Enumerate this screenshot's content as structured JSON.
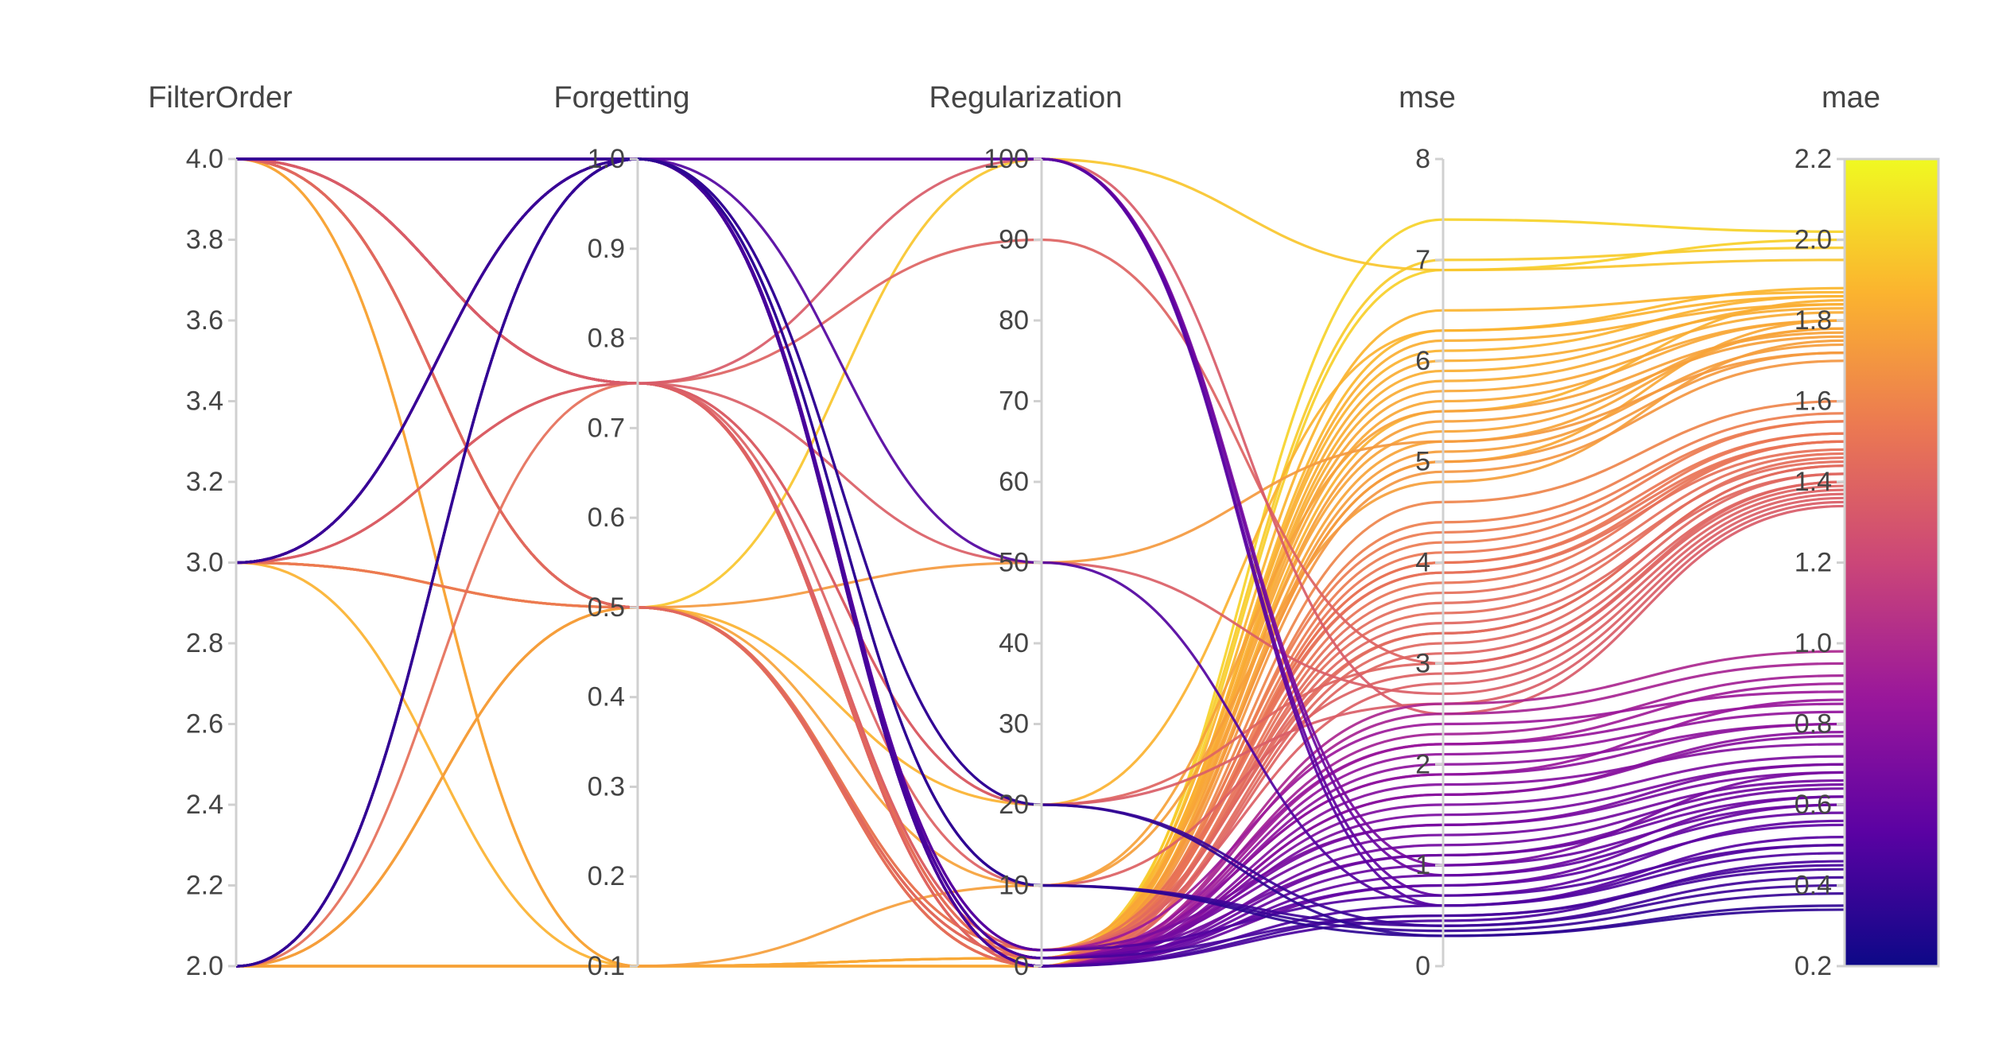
{
  "chart_data": {
    "type": "parallel_coordinates",
    "title": "",
    "colorscale": [
      "#0d0887",
      "#5b02a3",
      "#9a179b",
      "#cb4678",
      "#eb7852",
      "#fbb32f",
      "#f0f921"
    ],
    "color_dimension": "mae",
    "dimensions": [
      {
        "name": "FilterOrder",
        "range": [
          2.0,
          4.0
        ],
        "ticks": [
          "2.0",
          "2.2",
          "2.4",
          "2.6",
          "2.8",
          "3.0",
          "3.2",
          "3.4",
          "3.6",
          "3.8",
          "4.0"
        ]
      },
      {
        "name": "Forgetting",
        "range": [
          0.1,
          1.0
        ],
        "ticks": [
          "0.1",
          "0.2",
          "0.3",
          "0.4",
          "0.5",
          "0.6",
          "0.7",
          "0.8",
          "0.9",
          "1.0"
        ]
      },
      {
        "name": "Regularization",
        "range": [
          0,
          100
        ],
        "ticks": [
          "0",
          "10",
          "20",
          "30",
          "40",
          "50",
          "60",
          "70",
          "80",
          "90",
          "100"
        ]
      },
      {
        "name": "mse",
        "range": [
          0,
          8
        ],
        "ticks": [
          "0",
          "1",
          "2",
          "3",
          "4",
          "5",
          "6",
          "7",
          "8"
        ]
      },
      {
        "name": "mae",
        "range": [
          0.2,
          2.2
        ],
        "ticks": [
          "0.2",
          "0.4",
          "0.6",
          "0.8",
          "1.0",
          "1.2",
          "1.4",
          "1.6",
          "1.8",
          "2.0",
          "2.2"
        ]
      }
    ],
    "lines": [
      [
        2,
        0.1,
        0,
        6.9,
        2.0
      ],
      [
        2,
        0.1,
        1,
        7.0,
        1.98
      ],
      [
        2,
        0.1,
        0,
        5.5,
        1.85
      ],
      [
        2,
        0.1,
        1,
        5.0,
        1.8
      ],
      [
        2,
        0.1,
        0,
        6.3,
        1.88
      ],
      [
        4,
        0.1,
        1,
        5.8,
        1.82
      ],
      [
        4,
        0.1,
        0,
        5.2,
        1.78
      ],
      [
        2,
        0.1,
        10,
        4.8,
        1.75
      ],
      [
        2,
        0.1,
        0,
        7.4,
        2.02
      ],
      [
        3,
        0.1,
        1,
        6.1,
        1.86
      ],
      [
        4,
        0.5,
        0,
        5.9,
        1.84
      ],
      [
        4,
        0.5,
        1,
        5.6,
        1.8
      ],
      [
        4,
        0.5,
        2,
        5.3,
        1.78
      ],
      [
        3,
        0.5,
        0,
        5.4,
        1.76
      ],
      [
        4,
        0.5,
        0,
        6.0,
        1.83
      ],
      [
        3,
        0.5,
        1,
        5.7,
        1.8
      ],
      [
        2,
        0.5,
        0,
        5.1,
        1.74
      ],
      [
        4,
        0.5,
        20,
        6.3,
        1.86
      ],
      [
        3,
        0.5,
        50,
        5.2,
        1.72
      ],
      [
        2,
        0.5,
        10,
        5.5,
        1.77
      ],
      [
        4,
        0.5,
        100,
        6.9,
        1.95
      ],
      [
        3,
        0.5,
        1,
        6.5,
        1.87
      ],
      [
        4,
        0.5,
        0,
        4.9,
        1.7
      ],
      [
        2,
        0.5,
        0,
        6.2,
        1.84
      ],
      [
        4,
        0.5,
        1,
        5.0,
        1.72
      ],
      [
        4,
        0.5,
        0,
        4.2,
        1.55
      ],
      [
        4,
        0.5,
        1,
        4.0,
        1.5
      ],
      [
        4,
        0.5,
        2,
        3.9,
        1.48
      ],
      [
        4,
        0.5,
        0,
        3.6,
        1.45
      ],
      [
        4,
        0.5,
        1,
        3.4,
        1.42
      ],
      [
        3,
        0.5,
        0,
        4.1,
        1.52
      ],
      [
        4,
        0.75,
        0,
        3.8,
        1.5
      ],
      [
        4,
        0.75,
        1,
        3.5,
        1.46
      ],
      [
        4,
        0.75,
        2,
        3.3,
        1.44
      ],
      [
        4,
        0.75,
        0,
        3.1,
        1.4
      ],
      [
        4,
        0.75,
        10,
        2.9,
        1.38
      ],
      [
        4,
        0.75,
        20,
        3.0,
        1.4
      ],
      [
        4,
        0.75,
        50,
        2.7,
        1.36
      ],
      [
        3,
        0.75,
        0,
        3.2,
        1.42
      ],
      [
        3,
        0.75,
        1,
        4.3,
        1.55
      ],
      [
        2,
        0.75,
        0,
        3.7,
        1.47
      ],
      [
        4,
        0.75,
        90,
        3.0,
        1.39
      ],
      [
        4,
        0.75,
        100,
        2.5,
        1.34
      ],
      [
        4,
        0.75,
        0,
        4.4,
        1.57
      ],
      [
        4,
        0.75,
        1,
        3.9,
        1.5
      ],
      [
        4,
        0.75,
        2,
        2.8,
        1.37
      ],
      [
        4,
        0.75,
        0,
        4.6,
        1.6
      ],
      [
        3,
        0.75,
        20,
        2.6,
        1.35
      ],
      [
        4,
        0.75,
        0,
        3.3,
        1.44
      ],
      [
        4,
        0.75,
        1,
        4.0,
        1.52
      ],
      [
        2,
        1.0,
        0,
        1.0,
        0.6
      ],
      [
        2,
        1.0,
        1,
        0.8,
        0.55
      ],
      [
        2,
        1.0,
        0,
        1.2,
        0.65
      ],
      [
        2,
        1.0,
        2,
        0.7,
        0.5
      ],
      [
        2,
        1.0,
        0,
        1.5,
        0.7
      ],
      [
        2,
        1.0,
        1,
        0.5,
        0.45
      ],
      [
        2,
        1.0,
        0,
        0.6,
        0.48
      ],
      [
        2,
        1.0,
        10,
        0.4,
        0.42
      ],
      [
        2,
        1.0,
        20,
        0.3,
        0.35
      ],
      [
        2,
        1.0,
        0,
        1.8,
        0.75
      ],
      [
        3,
        1.0,
        0,
        2.0,
        0.8
      ],
      [
        3,
        1.0,
        1,
        2.2,
        0.85
      ],
      [
        3,
        1.0,
        0,
        1.7,
        0.78
      ],
      [
        3,
        1.0,
        2,
        2.4,
        0.88
      ],
      [
        3,
        1.0,
        0,
        0.9,
        0.58
      ],
      [
        3,
        1.0,
        10,
        0.35,
        0.38
      ],
      [
        3,
        1.0,
        1,
        1.3,
        0.66
      ],
      [
        3,
        1.0,
        0,
        2.1,
        0.83
      ],
      [
        3,
        1.0,
        20,
        0.4,
        0.4
      ],
      [
        3,
        1.0,
        0,
        1.6,
        0.72
      ],
      [
        4,
        1.0,
        0,
        2.3,
        0.92
      ],
      [
        4,
        1.0,
        1,
        1.9,
        0.86
      ],
      [
        4,
        1.0,
        0,
        2.5,
        0.95
      ],
      [
        4,
        1.0,
        2,
        1.4,
        0.7
      ],
      [
        4,
        1.0,
        0,
        0.8,
        0.6
      ],
      [
        4,
        1.0,
        1,
        1.1,
        0.64
      ],
      [
        4,
        1.0,
        100,
        0.9,
        0.62
      ],
      [
        4,
        1.0,
        100,
        1.0,
        0.68
      ],
      [
        4,
        1.0,
        50,
        0.6,
        0.5
      ],
      [
        4,
        1.0,
        0,
        2.6,
        0.98
      ],
      [
        2,
        1.0,
        100,
        0.7,
        0.56
      ],
      [
        2,
        1.0,
        100,
        0.6,
        0.52
      ],
      [
        2,
        1.0,
        0,
        0.45,
        0.46
      ],
      [
        3,
        1.0,
        0,
        0.5,
        0.44
      ],
      [
        4,
        1.0,
        10,
        0.3,
        0.34
      ],
      [
        2,
        1.0,
        0,
        2.2,
        0.9
      ],
      [
        3,
        1.0,
        1,
        1.9,
        0.8
      ],
      [
        4,
        1.0,
        0,
        1.7,
        0.77
      ],
      [
        2,
        1.0,
        1,
        1.4,
        0.68
      ],
      [
        3,
        1.0,
        0,
        1.1,
        0.62
      ]
    ]
  }
}
